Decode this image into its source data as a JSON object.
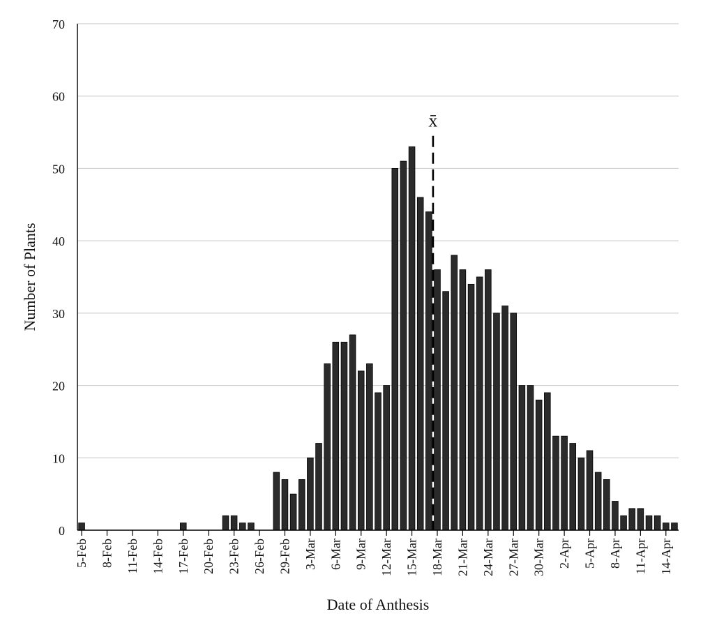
{
  "chart_data": {
    "type": "bar",
    "title": "",
    "xlabel": "Date of Anthesis",
    "ylabel": "Number of Plants",
    "ylim": [
      0,
      70
    ],
    "yticks": [
      0,
      10,
      20,
      30,
      40,
      50,
      60,
      70
    ],
    "grid": "horizontal",
    "legend": "none",
    "categories": [
      "5-Feb",
      "6-Feb",
      "7-Feb",
      "8-Feb",
      "9-Feb",
      "10-Feb",
      "11-Feb",
      "12-Feb",
      "13-Feb",
      "14-Feb",
      "15-Feb",
      "16-Feb",
      "17-Feb",
      "18-Feb",
      "19-Feb",
      "20-Feb",
      "21-Feb",
      "22-Feb",
      "23-Feb",
      "24-Feb",
      "25-Feb",
      "26-Feb",
      "27-Feb",
      "28-Feb",
      "29-Feb",
      "1-Mar",
      "2-Mar",
      "3-Mar",
      "4-Mar",
      "5-Mar",
      "6-Mar",
      "7-Mar",
      "8-Mar",
      "9-Mar",
      "10-Mar",
      "11-Mar",
      "12-Mar",
      "13-Mar",
      "14-Mar",
      "15-Mar",
      "16-Mar",
      "17-Mar",
      "18-Mar",
      "19-Mar",
      "20-Mar",
      "21-Mar",
      "22-Mar",
      "23-Mar",
      "24-Mar",
      "25-Mar",
      "26-Mar",
      "27-Mar",
      "28-Mar",
      "29-Mar",
      "30-Mar",
      "31-Mar",
      "1-Apr",
      "2-Apr",
      "3-Apr",
      "4-Apr",
      "5-Apr",
      "6-Apr",
      "7-Apr",
      "8-Apr",
      "9-Apr",
      "10-Apr",
      "11-Apr",
      "12-Apr",
      "13-Apr",
      "14-Apr",
      "15-Apr"
    ],
    "values": [
      1,
      0,
      0,
      0,
      0,
      0,
      0,
      0,
      0,
      0,
      0,
      0,
      1,
      0,
      0,
      0,
      0,
      2,
      2,
      1,
      1,
      0,
      0,
      8,
      7,
      5,
      7,
      10,
      12,
      23,
      26,
      26,
      27,
      22,
      23,
      19,
      20,
      50,
      51,
      53,
      46,
      44,
      36,
      33,
      38,
      36,
      34,
      35,
      36,
      30,
      31,
      30,
      20,
      20,
      18,
      19,
      13,
      13,
      12,
      10,
      11,
      8,
      7,
      4,
      2,
      3,
      3,
      2,
      2,
      1,
      1
    ],
    "xtick_labels": [
      "5-Feb",
      "8-Feb",
      "11-Feb",
      "14-Feb",
      "17-Feb",
      "20-Feb",
      "23-Feb",
      "26-Feb",
      "29-Feb",
      "3-Mar",
      "6-Mar",
      "9-Mar",
      "12-Mar",
      "15-Mar",
      "18-Mar",
      "21-Mar",
      "24-Mar",
      "27-Mar",
      "30-Mar",
      "2-Apr",
      "5-Apr",
      "8-Apr",
      "11-Apr",
      "14-Apr"
    ],
    "mean_line": {
      "label": "x̄",
      "category": "18-Mar"
    },
    "colors": {
      "bar": "#2b2b2b",
      "bar_edge": "#000000",
      "grid": "#d0d0d0",
      "axis": "#000000"
    }
  }
}
